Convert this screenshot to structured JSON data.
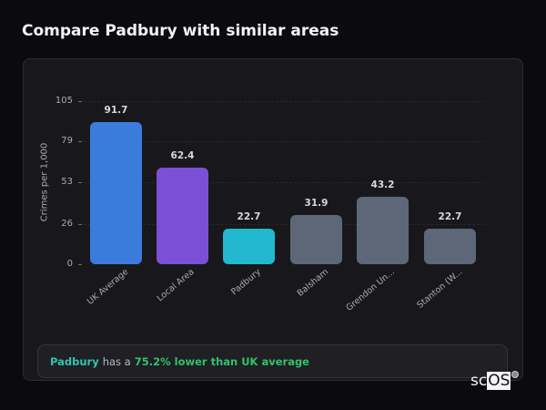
{
  "page": {
    "title": "Compare Padbury with similar areas"
  },
  "chart_data": {
    "type": "bar",
    "title": "Compare Padbury with similar areas",
    "xlabel": "",
    "ylabel": "Crimes per 1,000",
    "ylim": [
      0,
      105
    ],
    "yticks": [
      0,
      26,
      53,
      79,
      105
    ],
    "grid": true,
    "categories": [
      "UK Average",
      "Local Area",
      "Padbury",
      "Balsham",
      "Grendon Un...",
      "Stanton (W..."
    ],
    "values": [
      91.7,
      62.4,
      22.7,
      31.9,
      43.2,
      22.7
    ],
    "value_labels": [
      "91.7",
      "62.4",
      "22.7",
      "31.9",
      "43.2",
      "22.7"
    ],
    "colors": [
      "#3a7bdc",
      "#7b4fd6",
      "#22b8cf",
      "#5d6778",
      "#5d6778",
      "#5d6778"
    ]
  },
  "summary": {
    "place": "Padbury",
    "connector": "has a",
    "stat": "75.2% lower than UK average"
  },
  "logo": {
    "prefix": "sc",
    "boxed": "OS"
  }
}
